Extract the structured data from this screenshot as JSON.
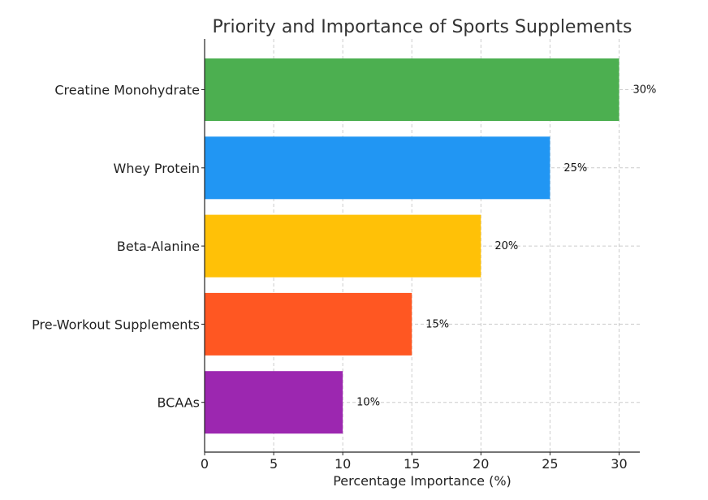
{
  "chart_data": {
    "type": "bar",
    "orientation": "horizontal",
    "title": "Priority and Importance of Sports Supplements",
    "xlabel": "Percentage Importance (%)",
    "ylabel": "",
    "categories": [
      "Creatine Monohydrate",
      "Whey Protein",
      "Beta-Alanine",
      "Pre-Workout Supplements",
      "BCAAs"
    ],
    "values": [
      30,
      25,
      20,
      15,
      10
    ],
    "data_labels": [
      "30%",
      "25%",
      "20%",
      "15%",
      "10%"
    ],
    "colors": [
      "#4caf50",
      "#2196f3",
      "#ffc107",
      "#ff5722",
      "#9c27b0"
    ],
    "xlim": [
      0,
      31.5
    ],
    "xticks": [
      0,
      5,
      10,
      15,
      20,
      25,
      30
    ],
    "grid": true
  }
}
